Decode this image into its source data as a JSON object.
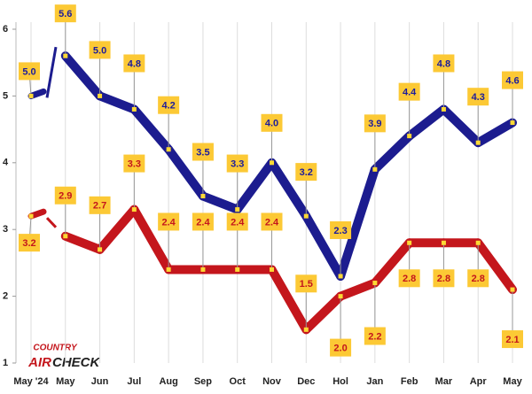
{
  "chart_data": {
    "type": "line",
    "categories": [
      "May '24",
      "May",
      "Jun",
      "Jul",
      "Aug",
      "Sep",
      "Oct",
      "Nov",
      "Dec",
      "Hol",
      "Jan",
      "Feb",
      "Mar",
      "Apr",
      "May"
    ],
    "series": [
      {
        "color": "#1c1c8f",
        "label_color": "#1c1c9c",
        "values": [
          5.0,
          5.6,
          5.0,
          4.8,
          4.2,
          3.5,
          3.3,
          4.0,
          3.2,
          2.3,
          3.9,
          4.4,
          4.8,
          4.3,
          4.6
        ],
        "value_labels": [
          "5.0",
          "5.6",
          "5.0",
          "4.8",
          "4.2",
          "3.5",
          "3.3",
          "4.0",
          "3.2",
          "2.3",
          "3.9",
          "4.4",
          "4.8",
          "4.3",
          "4.6"
        ]
      },
      {
        "color": "#c4161c",
        "label_color": "#c4161c",
        "values": [
          3.2,
          2.9,
          2.7,
          3.3,
          2.4,
          2.4,
          2.4,
          2.4,
          1.5,
          2.0,
          2.2,
          2.8,
          2.8,
          2.8,
          2.1
        ],
        "value_labels": [
          "3.2",
          "2.9",
          "2.7",
          "3.3",
          "2.4",
          "2.4",
          "2.4",
          "2.4",
          "1.5",
          "2.0",
          "2.2",
          "2.8",
          "2.8",
          "2.8",
          "2.1"
        ]
      }
    ],
    "ylim": [
      1,
      6
    ],
    "yticks": [
      1,
      2,
      3,
      4,
      5,
      6
    ],
    "grid": true,
    "logo": {
      "top": "COUNTRY",
      "left": "AIR",
      "right": "CHECK"
    }
  }
}
